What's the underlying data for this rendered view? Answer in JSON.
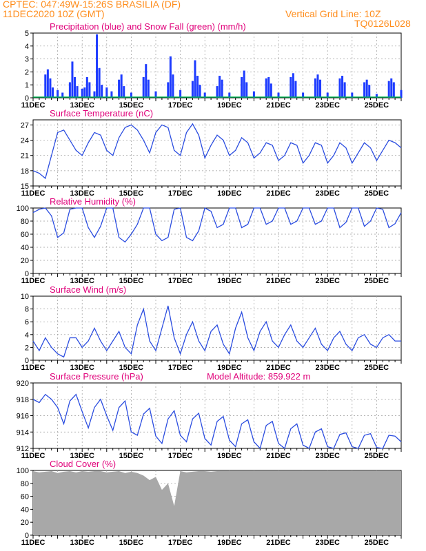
{
  "header": {
    "line1_left": "CPTEC:   047:49W-15:26S   BRASILIA (DF)",
    "line2_left": "11DEC2020 10Z (GMT)",
    "right_top": "Vertical Grid Line: 10Z",
    "right_code": "TQ0126L028"
  },
  "colors": {
    "header": "#ff8c1a",
    "title": "#e0007a",
    "precip": "#1e3cff",
    "snow": "#00b050",
    "line": "#2b4de0",
    "cloud": "#a8a8a8",
    "grid": "#9a9a9a"
  },
  "x_ticks": [
    "11DEC",
    "13DEC",
    "15DEC",
    "17DEC",
    "19DEC",
    "21DEC",
    "23DEC",
    "25DEC"
  ],
  "x_range_days": [
    0,
    15
  ],
  "chart_data": [
    {
      "type": "bar",
      "title": "Precipitation (blue) and Snow Fall (green) (mm/h)",
      "ylim": [
        0,
        5
      ],
      "yticks": [
        0,
        1,
        2,
        3,
        4,
        5
      ],
      "x_days": [
        0.5,
        0.6,
        0.7,
        0.8,
        1.0,
        1.2,
        1.5,
        1.6,
        1.7,
        1.8,
        2.0,
        2.1,
        2.2,
        2.3,
        2.5,
        2.6,
        2.7,
        2.8,
        3.0,
        3.2,
        3.5,
        3.6,
        3.7,
        4.0,
        4.5,
        4.6,
        4.7,
        5.0,
        5.5,
        5.6,
        5.7,
        6.0,
        6.5,
        6.6,
        6.7,
        6.8,
        7.0,
        7.5,
        7.6,
        7.7,
        8.0,
        8.5,
        8.6,
        8.7,
        9.0,
        9.5,
        9.6,
        9.7,
        10.0,
        10.5,
        10.6,
        10.7,
        11.0,
        11.5,
        11.6,
        11.7,
        12.0,
        12.5,
        12.6,
        12.7,
        13.0,
        13.5,
        13.6,
        13.7,
        14.0,
        14.5,
        14.6,
        14.7,
        15.0
      ],
      "values": [
        1.8,
        2.2,
        1.5,
        0.8,
        0.6,
        0.4,
        1.2,
        2.8,
        1.6,
        0.9,
        0.7,
        0.8,
        1.6,
        1.2,
        0.5,
        4.9,
        2.3,
        1.0,
        0.8,
        0.5,
        1.4,
        1.8,
        0.9,
        0.4,
        1.6,
        2.6,
        1.4,
        0.5,
        1.2,
        3.2,
        1.8,
        0.6,
        1.3,
        2.9,
        1.7,
        1.0,
        0.4,
        0.9,
        1.7,
        1.4,
        0.4,
        1.6,
        2.1,
        1.2,
        0.5,
        1.5,
        1.6,
        1.1,
        0.4,
        1.6,
        1.9,
        1.3,
        0.4,
        1.5,
        1.8,
        1.4,
        0.4,
        1.5,
        1.7,
        1.2,
        0.4,
        1.2,
        1.4,
        1.0,
        0.3,
        1.3,
        1.5,
        1.2,
        0.6
      ],
      "snow_values": [
        0,
        0,
        0,
        0,
        0,
        0,
        0,
        0,
        0,
        0,
        0,
        0,
        0,
        0,
        0,
        0,
        0,
        0,
        0,
        0,
        0,
        0,
        0,
        0,
        0,
        0,
        0,
        0,
        0,
        0,
        0,
        0,
        0,
        0,
        0,
        0,
        0,
        0,
        0,
        0,
        0,
        0,
        0,
        0,
        0,
        0,
        0,
        0,
        0,
        0,
        0,
        0,
        0,
        0,
        0,
        0,
        0,
        0,
        0,
        0,
        0,
        0,
        0,
        0,
        0,
        0,
        0,
        0,
        0
      ]
    },
    {
      "type": "line",
      "title": "Surface Temperature (nC)",
      "ylim": [
        15,
        28
      ],
      "yticks": [
        15,
        18,
        21,
        24,
        27
      ],
      "x_days": [
        0.0,
        0.25,
        0.5,
        0.75,
        1.0,
        1.25,
        1.5,
        1.75,
        2.0,
        2.25,
        2.5,
        2.75,
        3.0,
        3.25,
        3.5,
        3.75,
        4.0,
        4.25,
        4.5,
        4.75,
        5.0,
        5.25,
        5.5,
        5.75,
        6.0,
        6.25,
        6.5,
        6.75,
        7.0,
        7.25,
        7.5,
        7.75,
        8.0,
        8.25,
        8.5,
        8.75,
        9.0,
        9.25,
        9.5,
        9.75,
        10.0,
        10.25,
        10.5,
        10.75,
        11.0,
        11.25,
        11.5,
        11.75,
        12.0,
        12.25,
        12.5,
        12.75,
        13.0,
        13.25,
        13.5,
        13.75,
        14.0,
        14.25,
        14.5,
        14.75,
        15.0
      ],
      "values": [
        18.0,
        17.5,
        16.5,
        21.0,
        25.5,
        26.0,
        24.0,
        22.0,
        21.0,
        23.5,
        25.5,
        25.0,
        22.0,
        21.0,
        24.5,
        26.5,
        27.0,
        26.0,
        24.0,
        21.5,
        25.5,
        27.0,
        26.5,
        22.0,
        21.0,
        25.5,
        27.2,
        25.0,
        20.5,
        23.0,
        25.0,
        24.0,
        21.0,
        22.0,
        24.5,
        23.5,
        20.5,
        21.5,
        23.5,
        23.0,
        20.0,
        21.0,
        23.5,
        23.0,
        19.5,
        21.0,
        23.5,
        23.0,
        19.5,
        21.0,
        23.5,
        22.5,
        19.5,
        21.5,
        23.5,
        22.5,
        20.0,
        22.0,
        24.0,
        23.5,
        22.5
      ]
    },
    {
      "type": "line",
      "title": "Relative Humidity (%)",
      "ylim": [
        0,
        100
      ],
      "yticks": [
        0,
        20,
        40,
        60,
        80,
        100
      ],
      "x_days": [
        0.0,
        0.25,
        0.5,
        0.75,
        1.0,
        1.25,
        1.5,
        1.75,
        2.0,
        2.25,
        2.5,
        2.75,
        3.0,
        3.25,
        3.5,
        3.75,
        4.0,
        4.25,
        4.5,
        4.75,
        5.0,
        5.25,
        5.5,
        5.75,
        6.0,
        6.25,
        6.5,
        6.75,
        7.0,
        7.25,
        7.5,
        7.75,
        8.0,
        8.25,
        8.5,
        8.75,
        9.0,
        9.25,
        9.5,
        9.75,
        10.0,
        10.25,
        10.5,
        10.75,
        11.0,
        11.25,
        11.5,
        11.75,
        12.0,
        12.25,
        12.5,
        12.75,
        13.0,
        13.25,
        13.5,
        13.75,
        14.0,
        14.25,
        14.5,
        14.75,
        15.0
      ],
      "values": [
        93,
        98,
        100,
        88,
        55,
        62,
        98,
        100,
        100,
        70,
        55,
        72,
        100,
        100,
        55,
        48,
        60,
        75,
        100,
        100,
        60,
        50,
        55,
        98,
        100,
        55,
        50,
        65,
        100,
        95,
        70,
        75,
        100,
        100,
        70,
        75,
        100,
        100,
        75,
        80,
        100,
        100,
        75,
        80,
        100,
        100,
        75,
        80,
        100,
        100,
        70,
        78,
        100,
        100,
        72,
        80,
        100,
        98,
        70,
        76,
        93
      ]
    },
    {
      "type": "line",
      "title": "Surface Wind (m/s)",
      "ylim": [
        0,
        10
      ],
      "yticks": [
        0,
        2,
        4,
        6,
        8,
        10
      ],
      "x_days": [
        0.0,
        0.25,
        0.5,
        0.75,
        1.0,
        1.25,
        1.5,
        1.75,
        2.0,
        2.25,
        2.5,
        2.75,
        3.0,
        3.25,
        3.5,
        3.75,
        4.0,
        4.25,
        4.5,
        4.75,
        5.0,
        5.25,
        5.5,
        5.75,
        6.0,
        6.25,
        6.5,
        6.75,
        7.0,
        7.25,
        7.5,
        7.75,
        8.0,
        8.25,
        8.5,
        8.75,
        9.0,
        9.25,
        9.5,
        9.75,
        10.0,
        10.25,
        10.5,
        10.75,
        11.0,
        11.25,
        11.5,
        11.75,
        12.0,
        12.25,
        12.5,
        12.75,
        13.0,
        13.25,
        13.5,
        13.75,
        14.0,
        14.25,
        14.5,
        14.75,
        15.0
      ],
      "values": [
        3.0,
        1.5,
        3.5,
        2.0,
        1.0,
        0.5,
        3.5,
        3.5,
        2.0,
        3.0,
        5.0,
        3.0,
        1.5,
        3.0,
        4.5,
        2.0,
        1.0,
        5.5,
        8.0,
        3.0,
        1.5,
        5.0,
        8.5,
        3.5,
        1.0,
        4.0,
        6.0,
        3.0,
        1.5,
        4.5,
        5.5,
        2.5,
        1.0,
        5.0,
        7.5,
        3.5,
        1.5,
        4.5,
        6.0,
        3.0,
        2.0,
        4.0,
        5.5,
        3.0,
        2.0,
        3.5,
        5.0,
        2.5,
        1.5,
        3.5,
        4.5,
        2.5,
        1.5,
        3.5,
        4.0,
        2.5,
        2.0,
        3.5,
        4.0,
        3.0,
        3.0
      ]
    },
    {
      "type": "line",
      "title": "Surface Pressure (hPa)",
      "annotation": "Model Altitude: 859.922 m",
      "ylim": [
        912,
        920
      ],
      "yticks": [
        912,
        914,
        916,
        918,
        920
      ],
      "x_days": [
        0.0,
        0.25,
        0.5,
        0.75,
        1.0,
        1.25,
        1.5,
        1.75,
        2.0,
        2.25,
        2.5,
        2.75,
        3.0,
        3.25,
        3.5,
        3.75,
        4.0,
        4.25,
        4.5,
        4.75,
        5.0,
        5.25,
        5.5,
        5.75,
        6.0,
        6.25,
        6.5,
        6.75,
        7.0,
        7.25,
        7.5,
        7.75,
        8.0,
        8.25,
        8.5,
        8.75,
        9.0,
        9.25,
        9.5,
        9.75,
        10.0,
        10.25,
        10.5,
        10.75,
        11.0,
        11.25,
        11.5,
        11.75,
        12.0,
        12.25,
        12.5,
        12.75,
        13.0,
        13.25,
        13.5,
        13.75,
        14.0,
        14.25,
        14.5,
        14.75,
        15.0
      ],
      "values": [
        918.0,
        917.6,
        918.6,
        918.0,
        917.0,
        915.0,
        917.8,
        918.6,
        916.5,
        914.5,
        917.0,
        918.0,
        916.0,
        914.2,
        917.0,
        917.8,
        914.0,
        913.6,
        916.2,
        916.9,
        913.5,
        912.6,
        915.6,
        916.6,
        913.6,
        912.8,
        915.6,
        916.3,
        913.2,
        912.4,
        915.3,
        915.9,
        913.0,
        912.2,
        915.0,
        915.5,
        912.8,
        912.0,
        914.8,
        915.3,
        912.6,
        912.0,
        914.4,
        915.0,
        912.4,
        911.9,
        914.0,
        914.4,
        912.2,
        911.8,
        913.7,
        913.9,
        912.2,
        912.0,
        913.6,
        913.8,
        912.1,
        911.9,
        913.6,
        913.5,
        912.8
      ]
    },
    {
      "type": "area",
      "title": "Cloud Cover (%)",
      "ylim": [
        0,
        100
      ],
      "yticks": [
        0,
        20,
        40,
        60,
        80,
        100
      ],
      "x_days": [
        0.0,
        0.25,
        0.5,
        0.75,
        1.0,
        1.25,
        1.5,
        1.75,
        2.0,
        2.25,
        2.5,
        2.75,
        3.0,
        3.25,
        3.5,
        3.75,
        4.0,
        4.25,
        4.5,
        4.75,
        5.0,
        5.25,
        5.5,
        5.75,
        6.0,
        6.25,
        6.5,
        6.75,
        7.0,
        7.25,
        7.5,
        7.75,
        8.0,
        8.25,
        8.5,
        8.75,
        9.0,
        9.25,
        9.5,
        9.75,
        10.0,
        10.25,
        10.5,
        10.75,
        11.0,
        11.25,
        11.5,
        11.75,
        12.0,
        12.25,
        12.5,
        12.75,
        13.0,
        13.25,
        13.5,
        13.75,
        14.0,
        14.25,
        14.5,
        14.75,
        15.0
      ],
      "values": [
        99,
        97,
        98,
        99,
        96,
        98,
        99,
        97,
        99,
        98,
        99,
        99,
        97,
        98,
        99,
        96,
        98,
        96,
        92,
        85,
        90,
        70,
        80,
        45,
        99,
        97,
        98,
        99,
        99,
        98,
        99,
        99,
        99,
        99,
        99,
        99,
        99,
        99,
        99,
        99,
        99,
        99,
        99,
        99,
        99,
        99,
        99,
        99,
        99,
        99,
        99,
        99,
        99,
        99,
        99,
        99,
        99,
        99,
        99,
        99,
        99
      ]
    }
  ]
}
